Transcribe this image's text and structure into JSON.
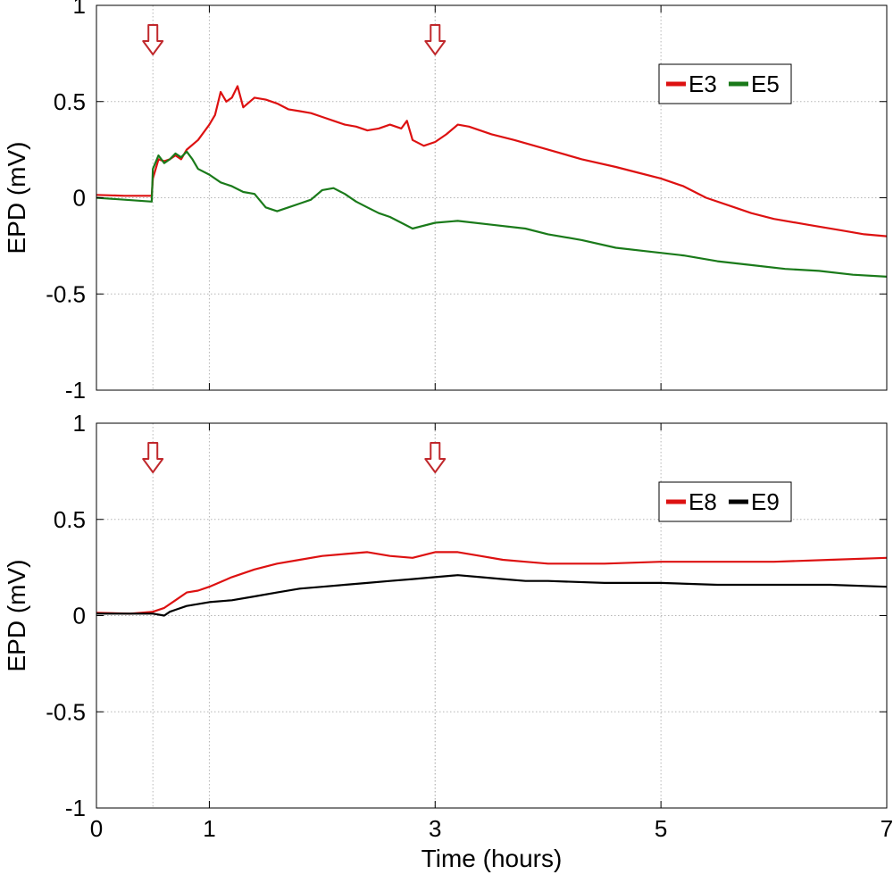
{
  "chart_data": [
    {
      "type": "line",
      "title": "",
      "xlabel": "",
      "ylabel": "EPD (mV)",
      "xlim": [
        0,
        7
      ],
      "ylim": [
        -1,
        1
      ],
      "xticks": [
        0,
        1,
        3,
        5,
        7
      ],
      "yticks": [
        -1,
        -0.5,
        0,
        0.5,
        1
      ],
      "x_tick_labels_shown": false,
      "grid": true,
      "legend": "top-right",
      "event_markers_x": [
        0.5,
        3
      ],
      "series": [
        {
          "name": "E3",
          "color": "#dd1111",
          "x": [
            0,
            0.25,
            0.49,
            0.5,
            0.55,
            0.6,
            0.65,
            0.7,
            0.75,
            0.8,
            0.9,
            1.0,
            1.05,
            1.1,
            1.15,
            1.2,
            1.25,
            1.3,
            1.4,
            1.5,
            1.6,
            1.7,
            1.8,
            1.9,
            2.0,
            2.1,
            2.2,
            2.3,
            2.4,
            2.5,
            2.6,
            2.7,
            2.75,
            2.8,
            2.9,
            3.0,
            3.1,
            3.2,
            3.3,
            3.5,
            3.7,
            4.0,
            4.3,
            4.6,
            4.8,
            5.0,
            5.2,
            5.4,
            5.6,
            5.8,
            6.0,
            6.3,
            6.6,
            6.8,
            7.0
          ],
          "y": [
            0.015,
            0.01,
            0.01,
            0.1,
            0.2,
            0.19,
            0.2,
            0.22,
            0.2,
            0.25,
            0.3,
            0.38,
            0.43,
            0.55,
            0.5,
            0.52,
            0.58,
            0.47,
            0.52,
            0.51,
            0.49,
            0.46,
            0.45,
            0.44,
            0.42,
            0.4,
            0.38,
            0.37,
            0.35,
            0.36,
            0.38,
            0.36,
            0.4,
            0.3,
            0.27,
            0.29,
            0.33,
            0.38,
            0.37,
            0.33,
            0.3,
            0.25,
            0.2,
            0.16,
            0.13,
            0.1,
            0.06,
            0.0,
            -0.04,
            -0.08,
            -0.11,
            -0.14,
            -0.17,
            -0.19,
            -0.2
          ]
        },
        {
          "name": "E5",
          "color": "#1a7a1a",
          "x": [
            0,
            0.25,
            0.49,
            0.5,
            0.55,
            0.6,
            0.65,
            0.7,
            0.75,
            0.8,
            0.85,
            0.9,
            1.0,
            1.1,
            1.2,
            1.3,
            1.4,
            1.5,
            1.6,
            1.7,
            1.8,
            1.9,
            2.0,
            2.1,
            2.2,
            2.3,
            2.4,
            2.5,
            2.6,
            2.7,
            2.8,
            3.0,
            3.2,
            3.5,
            3.8,
            4.0,
            4.3,
            4.6,
            4.9,
            5.2,
            5.5,
            5.8,
            6.1,
            6.4,
            6.7,
            7.0
          ],
          "y": [
            0.0,
            -0.01,
            -0.02,
            0.15,
            0.22,
            0.18,
            0.2,
            0.23,
            0.21,
            0.24,
            0.2,
            0.15,
            0.12,
            0.08,
            0.06,
            0.03,
            0.02,
            -0.05,
            -0.07,
            -0.05,
            -0.03,
            -0.01,
            0.04,
            0.05,
            0.02,
            -0.02,
            -0.05,
            -0.08,
            -0.1,
            -0.13,
            -0.16,
            -0.13,
            -0.12,
            -0.14,
            -0.16,
            -0.19,
            -0.22,
            -0.26,
            -0.28,
            -0.3,
            -0.33,
            -0.35,
            -0.37,
            -0.38,
            -0.4,
            -0.41
          ]
        }
      ]
    },
    {
      "type": "line",
      "title": "",
      "xlabel": "Time (hours)",
      "ylabel": "EPD (mV)",
      "xlim": [
        0,
        7
      ],
      "ylim": [
        -1,
        1
      ],
      "xticks": [
        0,
        1,
        3,
        5,
        7
      ],
      "yticks": [
        -1,
        -0.5,
        0,
        0.5,
        1
      ],
      "x_tick_labels_shown": true,
      "grid": true,
      "legend": "top-right",
      "event_markers_x": [
        0.5,
        3
      ],
      "series": [
        {
          "name": "E8",
          "color": "#dd1111",
          "x": [
            0,
            0.3,
            0.5,
            0.6,
            0.7,
            0.8,
            0.9,
            1.0,
            1.2,
            1.4,
            1.6,
            1.8,
            2.0,
            2.2,
            2.4,
            2.6,
            2.8,
            3.0,
            3.2,
            3.4,
            3.6,
            3.8,
            4.0,
            4.5,
            5.0,
            5.5,
            6.0,
            6.5,
            7.0
          ],
          "y": [
            0.015,
            0.01,
            0.02,
            0.04,
            0.08,
            0.12,
            0.13,
            0.15,
            0.2,
            0.24,
            0.27,
            0.29,
            0.31,
            0.32,
            0.33,
            0.31,
            0.3,
            0.33,
            0.33,
            0.31,
            0.29,
            0.28,
            0.27,
            0.27,
            0.28,
            0.28,
            0.28,
            0.29,
            0.3
          ]
        },
        {
          "name": "E9",
          "color": "#000000",
          "x": [
            0,
            0.3,
            0.5,
            0.6,
            0.65,
            0.7,
            0.8,
            0.9,
            1.0,
            1.2,
            1.4,
            1.6,
            1.8,
            2.0,
            2.2,
            2.4,
            2.6,
            2.8,
            3.0,
            3.2,
            3.4,
            3.6,
            3.8,
            4.0,
            4.5,
            5.0,
            5.5,
            6.0,
            6.5,
            7.0
          ],
          "y": [
            0.01,
            0.01,
            0.01,
            0.0,
            0.02,
            0.03,
            0.05,
            0.06,
            0.07,
            0.08,
            0.1,
            0.12,
            0.14,
            0.15,
            0.16,
            0.17,
            0.18,
            0.19,
            0.2,
            0.21,
            0.2,
            0.19,
            0.18,
            0.18,
            0.17,
            0.17,
            0.16,
            0.16,
            0.16,
            0.15
          ]
        }
      ]
    }
  ]
}
